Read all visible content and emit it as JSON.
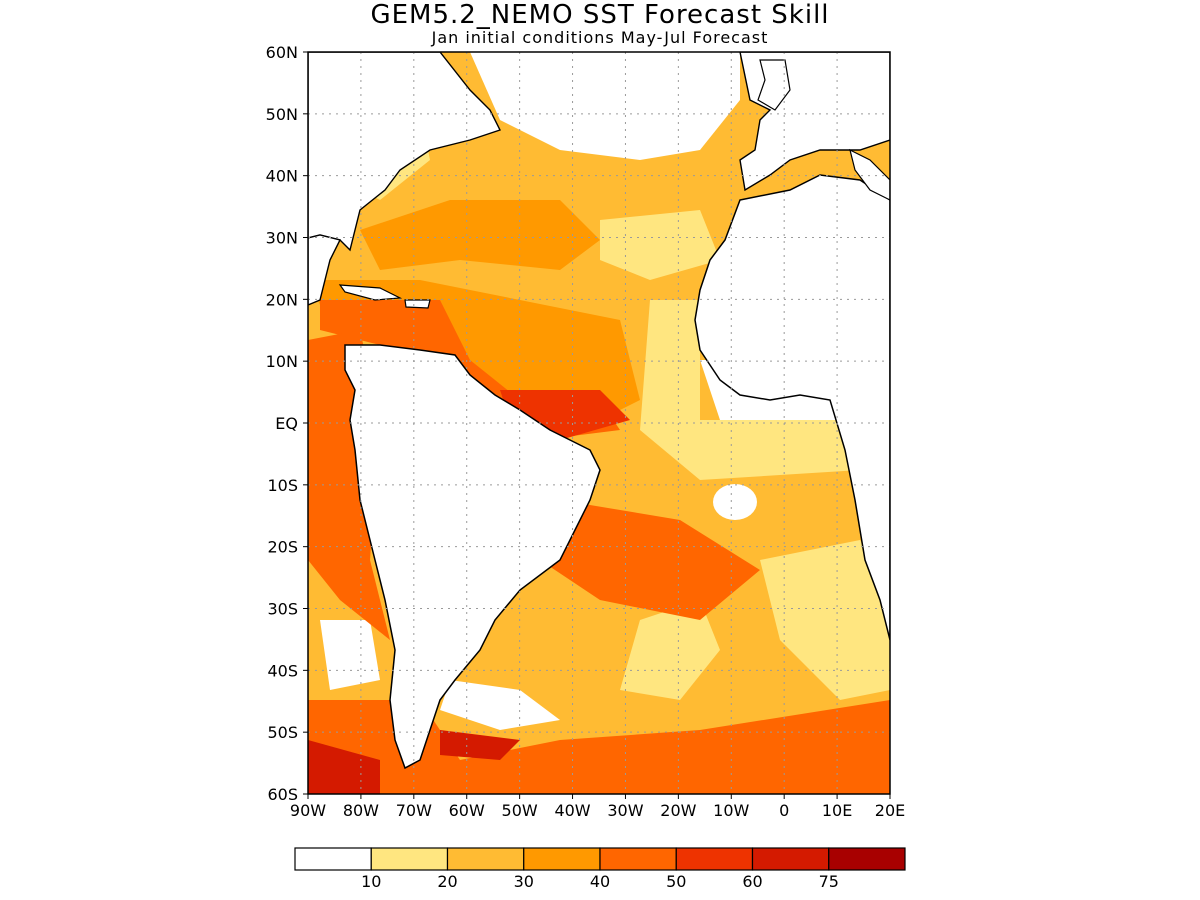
{
  "title": "GEM5.2_NEMO SST Forecast Skill",
  "subtitle": "Jan initial conditions   May-Jul Forecast",
  "lat_labels": [
    "60N",
    "50N",
    "40N",
    "30N",
    "20N",
    "10N",
    "EQ",
    "10S",
    "20S",
    "30S",
    "40S",
    "50S",
    "60S"
  ],
  "lon_labels": [
    "90W",
    "80W",
    "70W",
    "60W",
    "50W",
    "40W",
    "30W",
    "20W",
    "10W",
    "0",
    "10E",
    "20E"
  ],
  "colorbar": {
    "colors": [
      "#ffffff",
      "#ffe680",
      "#ffbb33",
      "#ff9900",
      "#ff6600",
      "#ee3300",
      "#d41a00",
      "#a80000"
    ],
    "labels": [
      "10",
      "20",
      "30",
      "40",
      "50",
      "60",
      "75"
    ]
  },
  "colors": {
    "land": "#ffffff",
    "coast": "#000000",
    "grid": "#9a9a9a"
  }
}
